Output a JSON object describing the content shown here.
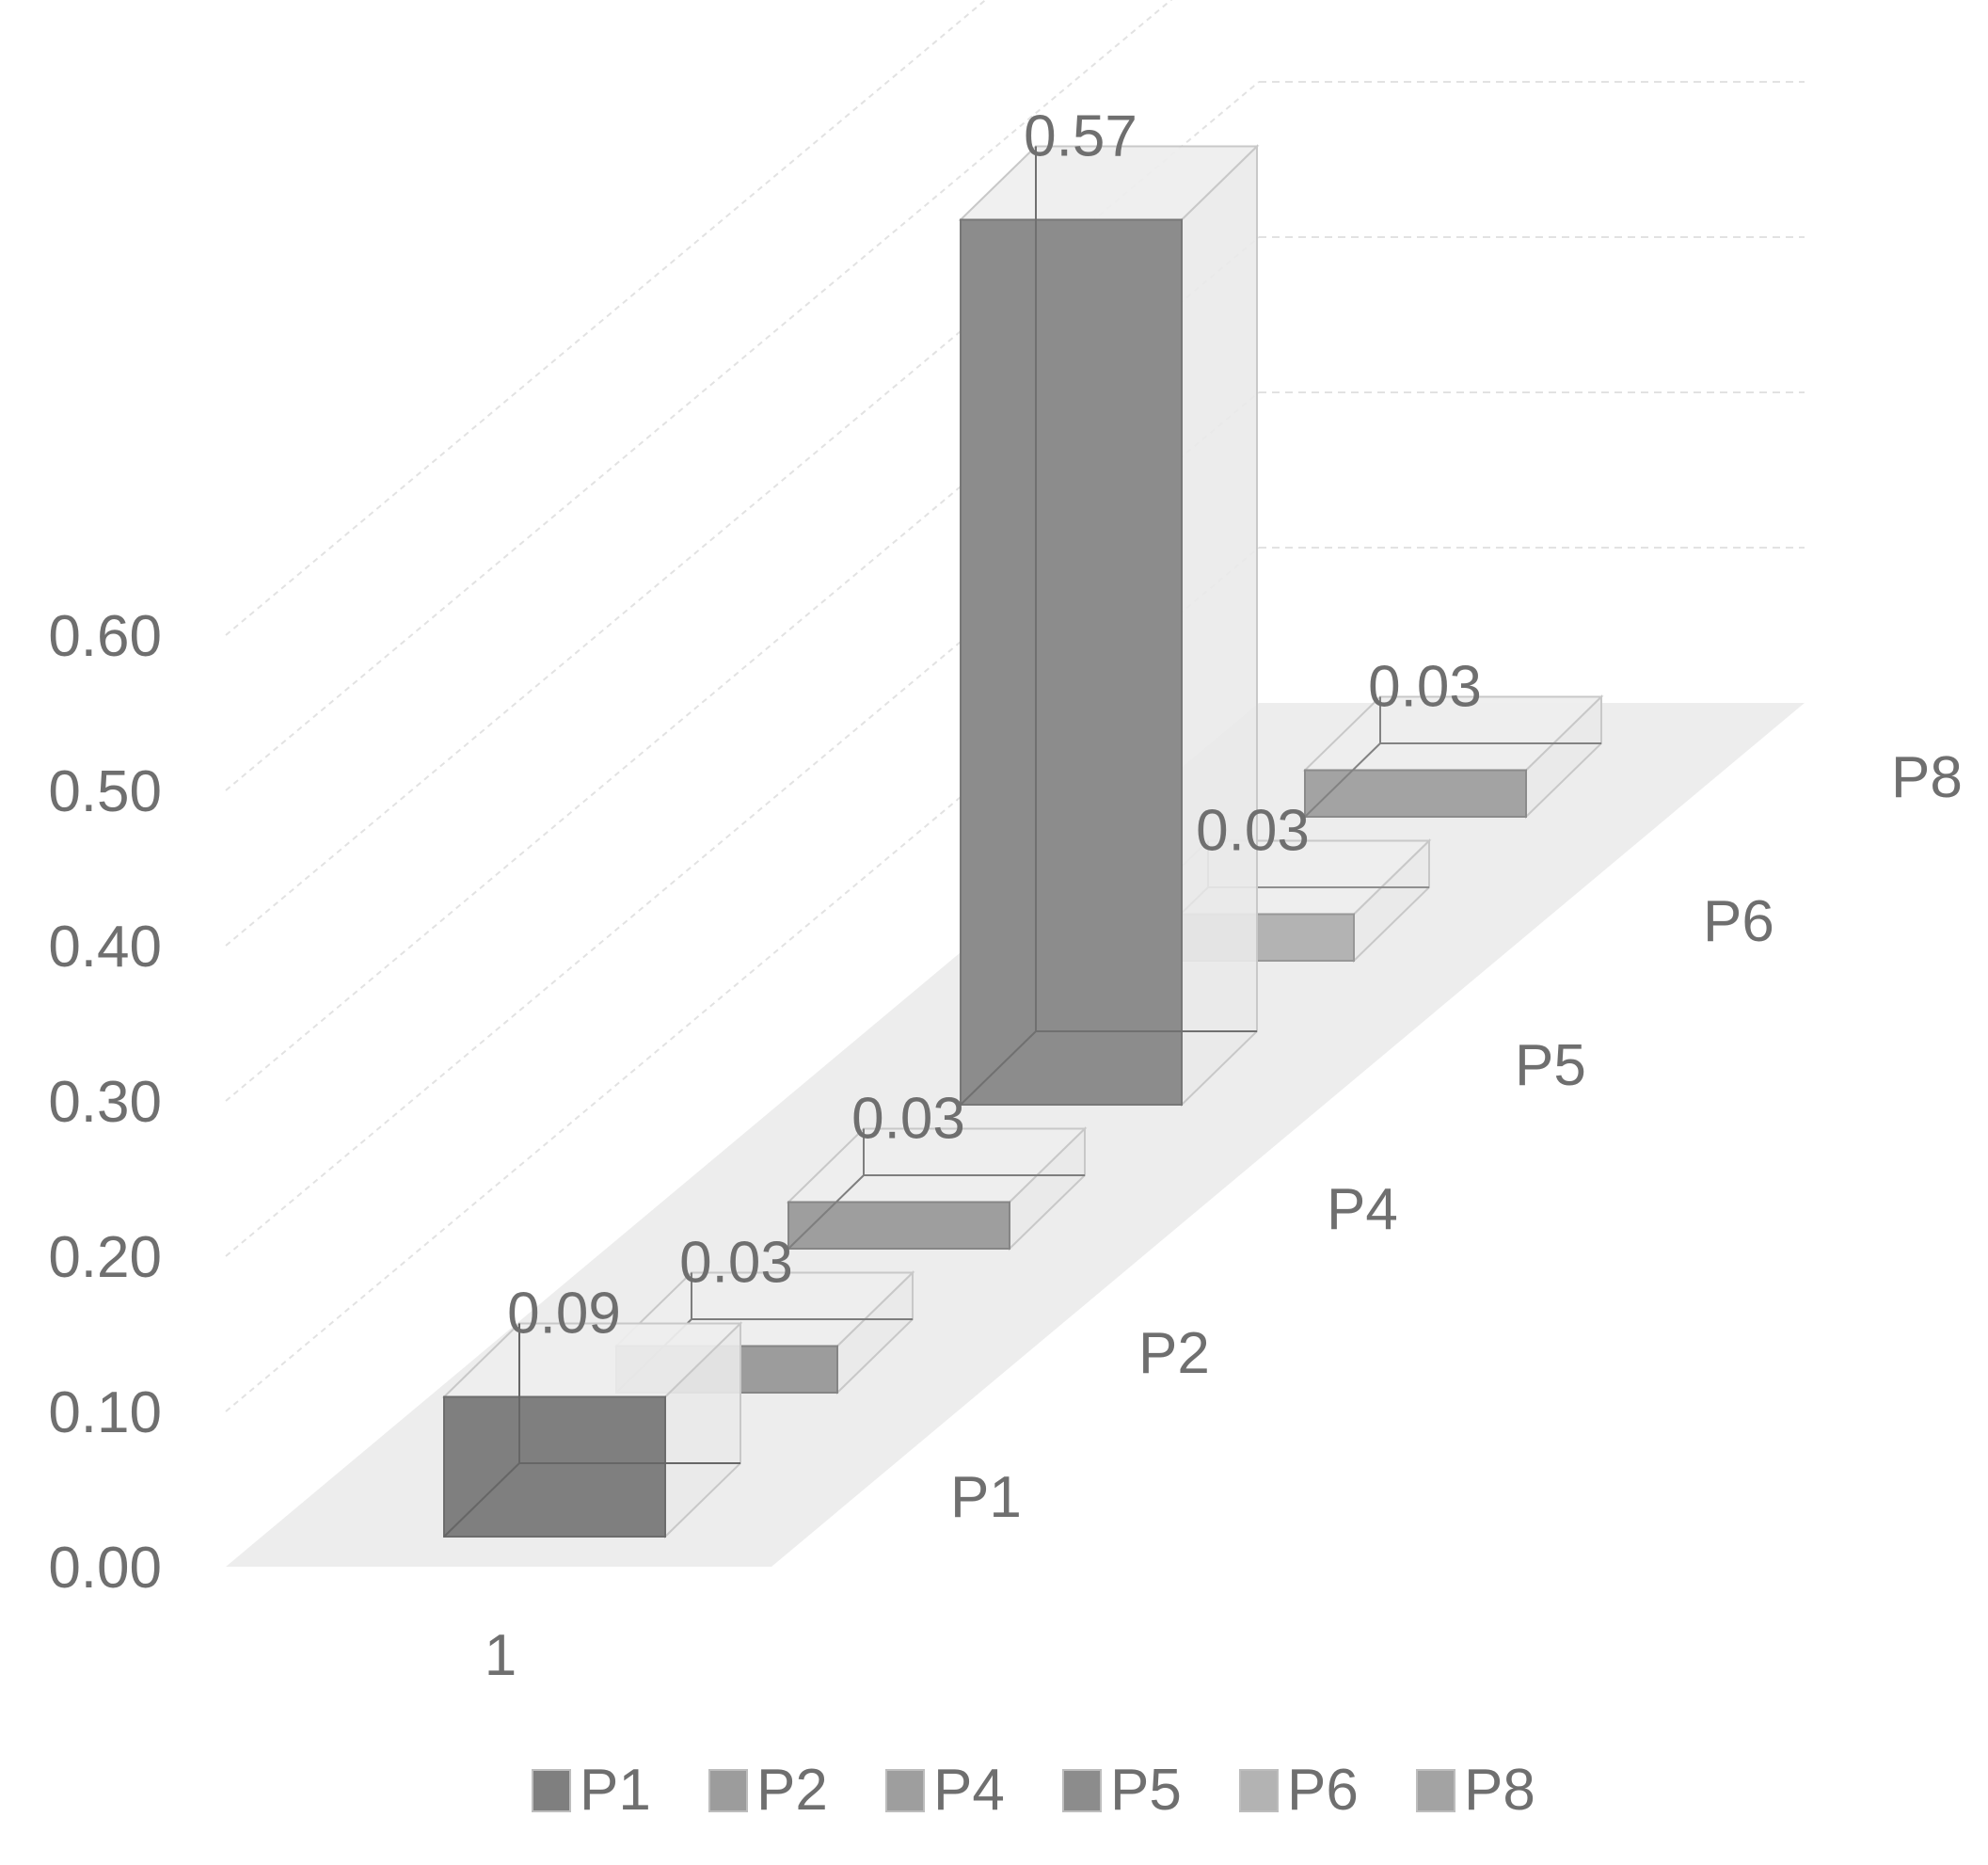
{
  "chart_data": {
    "type": "bar",
    "variant": "3d-column",
    "categories": [
      "1"
    ],
    "depth_labels": [
      "P1",
      "P2",
      "P4",
      "P5",
      "P6",
      "P8"
    ],
    "series": [
      {
        "name": "P1",
        "values": [
          0.09
        ],
        "data_label": "0.09",
        "color": "#7f7f7f"
      },
      {
        "name": "P2",
        "values": [
          0.03
        ],
        "data_label": "0.03",
        "color": "#9c9c9c"
      },
      {
        "name": "P4",
        "values": [
          0.03
        ],
        "data_label": "0.03",
        "color": "#9e9e9e"
      },
      {
        "name": "P5",
        "values": [
          0.57
        ],
        "data_label": "0.57",
        "color": "#8c8c8c"
      },
      {
        "name": "P6",
        "values": [
          0.03
        ],
        "data_label": "0.03",
        "color": "#b3b3b3"
      },
      {
        "name": "P8",
        "values": [
          0.03
        ],
        "data_label": "0.03",
        "color": "#a3a3a3"
      }
    ],
    "y_ticks": [
      "0.00",
      "0.10",
      "0.20",
      "0.30",
      "0.40",
      "0.50",
      "0.60"
    ],
    "ylim": [
      0,
      0.6
    ],
    "title": "",
    "xlabel": "",
    "ylabel": "",
    "grid": true,
    "legend": {
      "position": "bottom",
      "items": [
        "P1",
        "P2",
        "P4",
        "P5",
        "P6",
        "P8"
      ]
    },
    "colors": {
      "floor": "#ededed",
      "gridline": "#e2e2e2",
      "text": "#6f6f6f"
    }
  }
}
